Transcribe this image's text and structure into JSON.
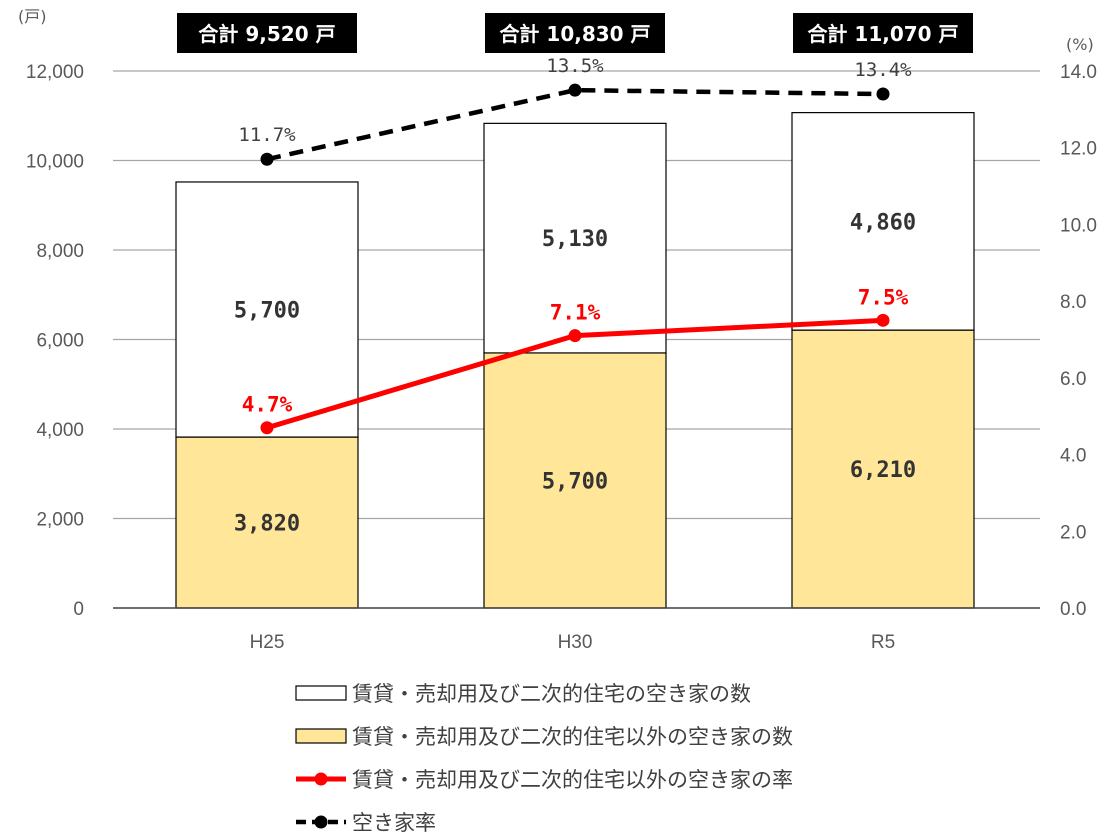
{
  "units": {
    "left": "(戸)",
    "right": "(%)"
  },
  "chart_data": {
    "type": "bar",
    "categories": [
      "H25",
      "H30",
      "R5"
    ],
    "y_left": {
      "ylim": [
        0,
        12000
      ],
      "ticks": [
        "0",
        "2,000",
        "4,000",
        "6,000",
        "8,000",
        "10,000",
        "12,000"
      ]
    },
    "y_right": {
      "ylim": [
        0,
        14
      ],
      "ticks": [
        "0.0",
        "2.0",
        "4.0",
        "6.0",
        "8.0",
        "10.0",
        "12.0",
        "14.0"
      ]
    },
    "totals": [
      "合計 9,520 戸",
      "合計 10,830 戸",
      "合計 11,070 戸"
    ],
    "bar_series": [
      {
        "name": "賃貸・売却用及び二次的住宅以外の空き家の数",
        "values": [
          3820,
          5700,
          6210
        ],
        "labels": [
          "3,820",
          "5,700",
          "6,210"
        ],
        "color": "#ffe699"
      },
      {
        "name": "賃貸・売却用及び二次的住宅の空き家の数",
        "values": [
          5700,
          5130,
          4860
        ],
        "labels": [
          "5,700",
          "5,130",
          "4,860"
        ],
        "color": "#ffffff"
      }
    ],
    "line_series": [
      {
        "name": "賃貸・売却用及び二次的住宅以外の空き家の率",
        "values": [
          4.7,
          7.1,
          7.5
        ],
        "labels": [
          "4.7%",
          "7.1%",
          "7.5%"
        ],
        "color": "#ff0000",
        "style": "solid"
      },
      {
        "name": "空き家率",
        "values": [
          11.7,
          13.5,
          13.4
        ],
        "labels": [
          "11.7%",
          "13.5%",
          "13.4%"
        ],
        "color": "#000000",
        "style": "dashed"
      }
    ],
    "grid": true,
    "legend_position": "bottom"
  }
}
